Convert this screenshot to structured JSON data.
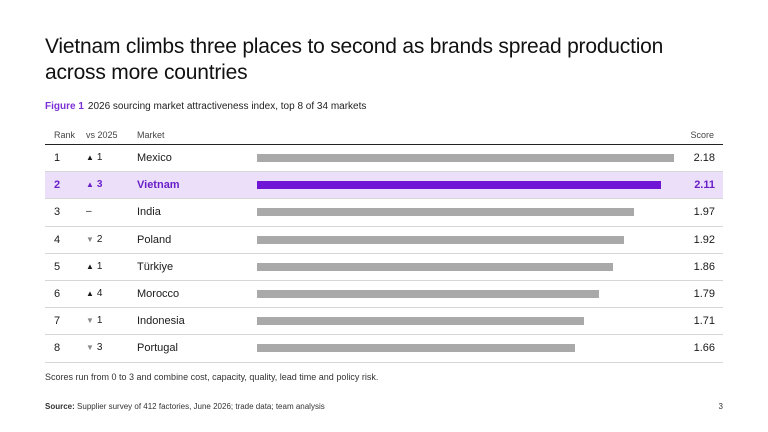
{
  "title": "Vietnam climbs three places to second as brands spread production across more countries",
  "figure": {
    "label": "Figure 1",
    "caption": "2026 sourcing market attractiveness index, top 8 of 34 markets"
  },
  "colors": {
    "accent": "#7014d6",
    "accent_text": "#6a20c8",
    "highlight_background": "#ecdffa",
    "bar_default": "#a9a9a9"
  },
  "chart_data": {
    "type": "bar",
    "orientation": "horizontal",
    "columns": [
      "Rank",
      "vs 2025",
      "Market",
      "Score"
    ],
    "xlim": [
      0,
      2.3
    ],
    "highlighted_market": "Vietnam",
    "rows": [
      {
        "rank": "1",
        "direction": "up",
        "change": "1",
        "market": "Mexico",
        "score": 2.18,
        "score_label": "2.18"
      },
      {
        "rank": "2",
        "direction": "up",
        "change": "3",
        "market": "Vietnam",
        "score": 2.11,
        "score_label": "2.11"
      },
      {
        "rank": "3",
        "direction": "none",
        "change": "–",
        "market": "India",
        "score": 1.97,
        "score_label": "1.97"
      },
      {
        "rank": "4",
        "direction": "down",
        "change": "2",
        "market": "Poland",
        "score": 1.92,
        "score_label": "1.92"
      },
      {
        "rank": "5",
        "direction": "up",
        "change": "1",
        "market": "Türkiye",
        "score": 1.86,
        "score_label": "1.86"
      },
      {
        "rank": "6",
        "direction": "up",
        "change": "4",
        "market": "Morocco",
        "score": 1.79,
        "score_label": "1.79"
      },
      {
        "rank": "7",
        "direction": "down",
        "change": "1",
        "market": "Indonesia",
        "score": 1.71,
        "score_label": "1.71"
      },
      {
        "rank": "8",
        "direction": "down",
        "change": "3",
        "market": "Portugal",
        "score": 1.66,
        "score_label": "1.66"
      }
    ]
  },
  "note": "Scores run from 0 to 3 and combine cost, capacity, quality, lead time and policy risk.",
  "source": {
    "label": "Source:",
    "text": "Supplier survey of 412 factories, June 2026; trade data; team analysis"
  },
  "page_number": "3"
}
